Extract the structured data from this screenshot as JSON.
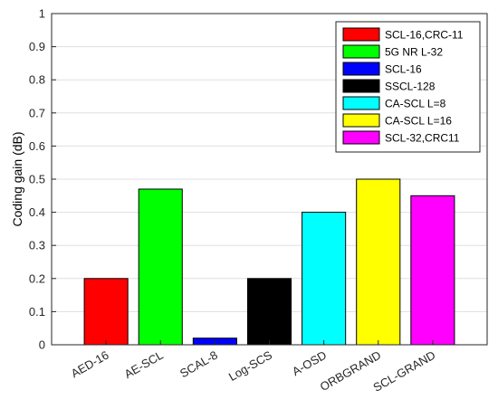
{
  "chart_data": {
    "type": "bar",
    "categories": [
      "AED-16",
      "AE-SCL",
      "SCAL-8",
      "Log-SCS",
      "A-OSD",
      "ORBGRAND",
      "SCL-GRAND"
    ],
    "values": [
      0.2,
      0.47,
      0.02,
      0.2,
      0.4,
      0.5,
      0.45
    ],
    "colors": [
      "#ff0000",
      "#00ff00",
      "#0000ff",
      "#000000",
      "#00ffff",
      "#ffff00",
      "#ff00ff"
    ],
    "legend": [
      "SCL-16,CRC-11",
      "5G NR L-32",
      "SCL-16",
      "SSCL-128",
      "CA-SCL L=8",
      "CA-SCL L=16",
      "SCL-32,CRC11"
    ],
    "legend_position": "top-right",
    "ylabel": "Coding gain (dB)",
    "xlabel": "",
    "ylim": [
      0,
      1
    ],
    "yticks": [
      "0",
      "0.1",
      "0.2",
      "0.3",
      "0.4",
      "0.5",
      "0.6",
      "0.7",
      "0.8",
      "0.9",
      "1"
    ],
    "grid": true
  }
}
